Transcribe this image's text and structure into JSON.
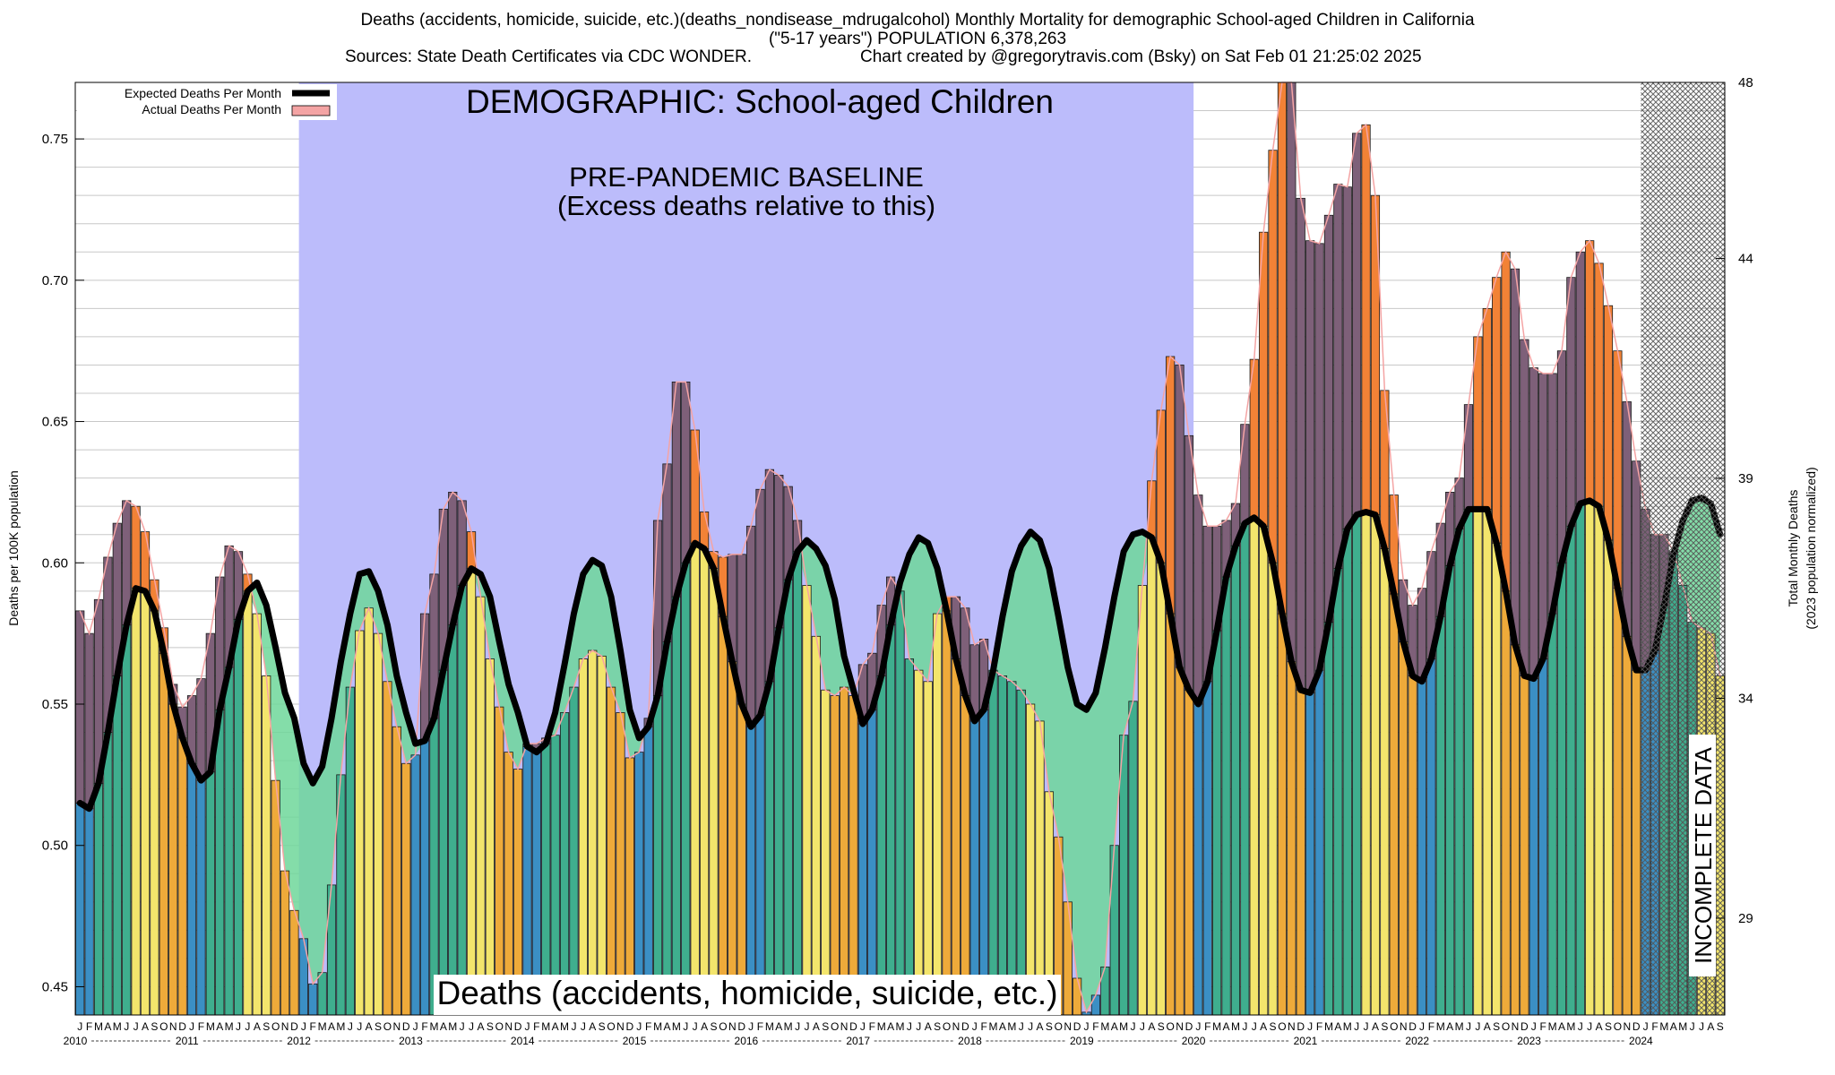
{
  "header": {
    "line1": "Deaths (accidents, homicide, suicide, etc.)(deaths_nondisease_mdrugalcohol) Monthly Mortality for demographic School-aged Children in California",
    "line2": "(\"5-17 years\") POPULATION 6,378,263",
    "sources": "Sources: State Death Certificates via CDC WONDER.",
    "credit": "Chart created by @gregorytravis.com (Bsky) on Sat Feb 01 21:25:02 2025"
  },
  "chart_data": {
    "type": "bar",
    "title": "Deaths (accidents, homicide, suicide, etc.)(deaths_nondisease_mdrugalcohol) Monthly Mortality for demographic School-aged Children in California",
    "ylabel": "Deaths per 100K population",
    "y2label": "Total Monthly Deaths",
    "y2sublabel": "(2023 population normalized)",
    "ylim": [
      0.44,
      0.77
    ],
    "y2lim": [
      26.8,
      48
    ],
    "yticks": [
      0.45,
      0.5,
      0.55,
      0.6,
      0.65,
      0.7,
      0.75
    ],
    "ytick_labels": [
      "0.45",
      "0.50",
      "0.55",
      "0.60",
      "0.65",
      "0.70",
      "0.75"
    ],
    "y2ticks": [
      29,
      34,
      39,
      44,
      48
    ],
    "grid": true,
    "legend_position": "top-left",
    "legend": [
      "Expected Deaths Per Month",
      "Actual Deaths Per Month"
    ],
    "month_letters": [
      "J",
      "F",
      "M",
      "A",
      "M",
      "J",
      "J",
      "A",
      "S",
      "O",
      "N",
      "D"
    ],
    "years": [
      "2010",
      "2011",
      "2012",
      "2013",
      "2014",
      "2015",
      "2016",
      "2017",
      "2018",
      "2019",
      "2020",
      "2021",
      "2022",
      "2023",
      "2024"
    ],
    "baseline_label": "PRE-PANDEMIC BASELINE",
    "baseline_sublabel": "(Excess deaths relative to this)",
    "baseline_start": "2012-01",
    "baseline_end": "2019-12",
    "demographic_label": "DEMOGRAPHIC: School-aged Children",
    "bottom_label": "Deaths (accidents, homicide, suicide, etc.)",
    "incomplete_label": "INCOMPLETE DATA",
    "incomplete_start": "2024-01",
    "start_month": "2010-01",
    "actual": [
      0.583,
      0.575,
      0.587,
      0.602,
      0.614,
      0.622,
      0.62,
      0.611,
      0.594,
      0.577,
      0.557,
      0.549,
      0.553,
      0.559,
      0.575,
      0.595,
      0.606,
      0.604,
      0.596,
      0.582,
      0.56,
      0.523,
      0.491,
      0.477,
      0.467,
      0.451,
      0.455,
      0.486,
      0.525,
      0.556,
      0.576,
      0.584,
      0.575,
      0.558,
      0.542,
      0.529,
      0.532,
      0.582,
      0.596,
      0.619,
      0.625,
      0.622,
      0.611,
      0.588,
      0.566,
      0.549,
      0.533,
      0.527,
      0.536,
      0.536,
      0.538,
      0.539,
      0.547,
      0.556,
      0.566,
      0.569,
      0.567,
      0.556,
      0.547,
      0.531,
      0.533,
      0.545,
      0.615,
      0.635,
      0.664,
      0.664,
      0.647,
      0.618,
      0.604,
      0.602,
      0.603,
      0.603,
      0.613,
      0.626,
      0.633,
      0.631,
      0.627,
      0.615,
      0.592,
      0.574,
      0.555,
      0.553,
      0.556,
      0.553,
      0.564,
      0.568,
      0.585,
      0.595,
      0.59,
      0.566,
      0.562,
      0.558,
      0.582,
      0.588,
      0.588,
      0.584,
      0.571,
      0.573,
      0.562,
      0.56,
      0.558,
      0.555,
      0.55,
      0.544,
      0.519,
      0.503,
      0.48,
      0.453,
      0.441,
      0.447,
      0.457,
      0.5,
      0.539,
      0.551,
      0.592,
      0.629,
      0.654,
      0.673,
      0.67,
      0.645,
      0.624,
      0.613,
      0.613,
      0.615,
      0.621,
      0.649,
      0.672,
      0.717,
      0.746,
      0.77,
      0.77,
      0.729,
      0.714,
      0.713,
      0.723,
      0.734,
      0.733,
      0.752,
      0.755,
      0.73,
      0.661,
      0.624,
      0.594,
      0.585,
      0.591,
      0.604,
      0.614,
      0.625,
      0.63,
      0.656,
      0.68,
      0.69,
      0.701,
      0.71,
      0.704,
      0.679,
      0.669,
      0.667,
      0.667,
      0.675,
      0.701,
      0.71,
      0.714,
      0.706,
      0.691,
      0.675,
      0.657,
      0.636,
      0.619,
      0.61,
      0.61,
      0.604,
      0.592,
      0.579,
      0.577,
      0.575,
      0.56
    ],
    "expected": [
      0.515,
      0.513,
      0.522,
      0.54,
      0.56,
      0.578,
      0.591,
      0.59,
      0.583,
      0.568,
      0.55,
      0.538,
      0.529,
      0.523,
      0.526,
      0.548,
      0.563,
      0.58,
      0.59,
      0.593,
      0.585,
      0.57,
      0.554,
      0.545,
      0.529,
      0.522,
      0.528,
      0.545,
      0.565,
      0.582,
      0.596,
      0.597,
      0.59,
      0.578,
      0.56,
      0.547,
      0.536,
      0.537,
      0.545,
      0.562,
      0.578,
      0.592,
      0.598,
      0.596,
      0.588,
      0.572,
      0.557,
      0.547,
      0.535,
      0.533,
      0.536,
      0.547,
      0.564,
      0.582,
      0.596,
      0.601,
      0.599,
      0.588,
      0.569,
      0.548,
      0.538,
      0.542,
      0.553,
      0.572,
      0.588,
      0.6,
      0.607,
      0.605,
      0.598,
      0.581,
      0.565,
      0.55,
      0.542,
      0.546,
      0.558,
      0.577,
      0.594,
      0.604,
      0.608,
      0.605,
      0.599,
      0.587,
      0.567,
      0.555,
      0.543,
      0.548,
      0.56,
      0.578,
      0.593,
      0.603,
      0.609,
      0.607,
      0.598,
      0.583,
      0.566,
      0.553,
      0.544,
      0.548,
      0.562,
      0.581,
      0.597,
      0.606,
      0.611,
      0.608,
      0.598,
      0.581,
      0.563,
      0.55,
      0.548,
      0.554,
      0.57,
      0.588,
      0.604,
      0.61,
      0.611,
      0.609,
      0.6,
      0.582,
      0.563,
      0.555,
      0.55,
      0.558,
      0.576,
      0.595,
      0.606,
      0.614,
      0.616,
      0.613,
      0.6,
      0.582,
      0.565,
      0.555,
      0.554,
      0.562,
      0.579,
      0.598,
      0.612,
      0.617,
      0.618,
      0.617,
      0.605,
      0.589,
      0.572,
      0.56,
      0.558,
      0.566,
      0.581,
      0.599,
      0.612,
      0.619,
      0.619,
      0.619,
      0.607,
      0.59,
      0.571,
      0.56,
      0.559,
      0.566,
      0.582,
      0.6,
      0.613,
      0.621,
      0.622,
      0.62,
      0.608,
      0.591,
      0.574,
      0.562,
      0.562,
      0.569,
      0.585,
      0.603,
      0.615,
      0.622,
      0.623,
      0.621,
      0.61
    ]
  }
}
